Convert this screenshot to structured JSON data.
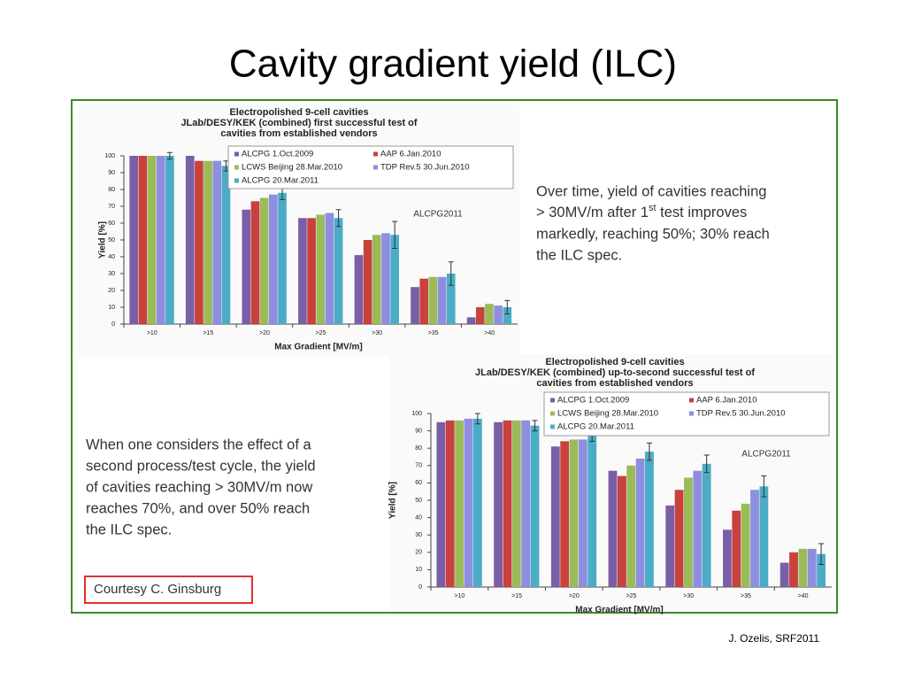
{
  "slide": {
    "title": "Cavity gradient yield (ILC)",
    "note_top": [
      "Over time, yield of cavities reaching",
      "> 30MV/m after 1",
      "st",
      " test improves",
      "markedly, reaching 50%; 30% reach",
      "the ILC spec."
    ],
    "note_bottom": [
      "When one considers the effect of a",
      "second process/test cycle, the yield",
      "of cavities reaching > 30MV/m now",
      "reaches 70%, and over 50% reach",
      "the ILC spec."
    ],
    "courtesy": "Courtesy C. Ginsburg",
    "footer": "J. Ozelis, SRF2011"
  },
  "chart_data": [
    {
      "type": "bar",
      "title": [
        "Electropolished 9-cell cavities",
        "JLab/DESY/KEK (combined) first successful test of",
        "cavities from established vendors"
      ],
      "annotation": "ALCPG2011",
      "x_label": "Max Gradient [MV/m]",
      "y_label": "Yield [%]",
      "categories": [
        ">10",
        ">15",
        ">20",
        ">25",
        ">30",
        ">35",
        ">40"
      ],
      "ylim": [
        0,
        100
      ],
      "yticks": [
        0,
        10,
        20,
        30,
        40,
        50,
        60,
        70,
        80,
        90,
        100
      ],
      "series": [
        {
          "name": "ALCPG 1.Oct.2009",
          "color": "#7a5ea6",
          "values": [
            100,
            100,
            68,
            63,
            41,
            22,
            4
          ]
        },
        {
          "name": "AAP 6.Jan.2010",
          "color": "#c8413c",
          "values": [
            100,
            97,
            73,
            63,
            50,
            27,
            10
          ]
        },
        {
          "name": "LCWS Beijing 28.Mar.2010",
          "color": "#9bbb59",
          "values": [
            100,
            97,
            75,
            65,
            53,
            28,
            12
          ]
        },
        {
          "name": "TDP Rev.5 30.Jun.2010",
          "color": "#8e8ee0",
          "values": [
            100,
            97,
            77,
            66,
            54,
            28,
            11
          ]
        },
        {
          "name": "ALCPG 20.Mar.2011",
          "color": "#4bacc6",
          "values": [
            100,
            94,
            78,
            63,
            53,
            30,
            10
          ],
          "errors": [
            2,
            3,
            4,
            5,
            8,
            7,
            4
          ]
        }
      ]
    },
    {
      "type": "bar",
      "title": [
        "Electropolished 9-cell cavities",
        "JLab/DESY/KEK (combined) up-to-second successful test of",
        "cavities from established vendors"
      ],
      "annotation": "ALCPG2011",
      "x_label": "Max Gradient [MV/m]",
      "y_label": "Yield [%]",
      "categories": [
        ">10",
        ">15",
        ">20",
        ">25",
        ">30",
        ">35",
        ">40"
      ],
      "ylim": [
        0,
        100
      ],
      "yticks": [
        0,
        10,
        20,
        30,
        40,
        50,
        60,
        70,
        80,
        90,
        100
      ],
      "series": [
        {
          "name": "ALCPG 1.Oct.2009",
          "color": "#7a5ea6",
          "values": [
            95,
            95,
            81,
            67,
            47,
            33,
            14
          ]
        },
        {
          "name": "AAP 6.Jan.2010",
          "color": "#c8413c",
          "values": [
            96,
            96,
            84,
            64,
            56,
            44,
            20
          ]
        },
        {
          "name": "LCWS Beijing 28.Mar.2010",
          "color": "#9bbb59",
          "values": [
            96,
            96,
            85,
            70,
            63,
            48,
            22
          ]
        },
        {
          "name": "TDP Rev.5 30.Jun.2010",
          "color": "#8e8ee0",
          "values": [
            97,
            96,
            85,
            74,
            67,
            56,
            22
          ]
        },
        {
          "name": "ALCPG 20.Mar.2011",
          "color": "#4bacc6",
          "values": [
            97,
            93,
            87,
            78,
            71,
            58,
            19
          ],
          "errors": [
            3,
            3,
            3,
            5,
            5,
            6,
            6
          ]
        }
      ]
    }
  ]
}
